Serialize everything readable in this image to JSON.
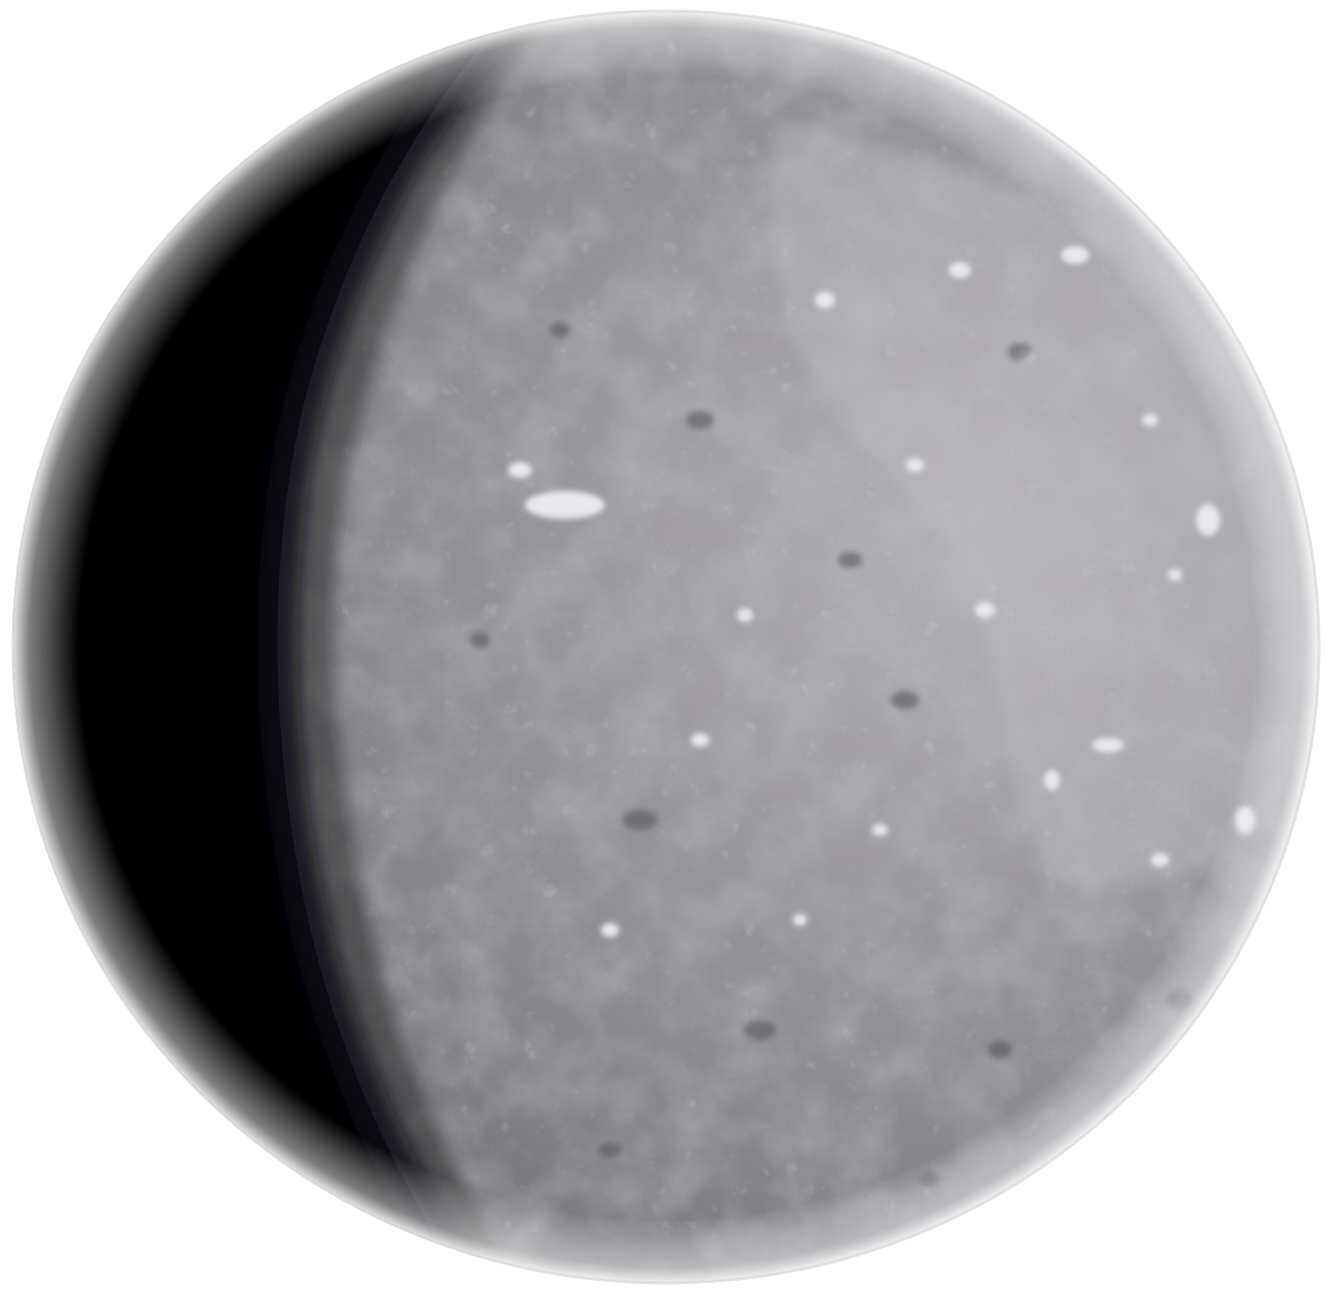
{
  "scene": {
    "subject": "planet-illustration",
    "colors": {
      "background": "#ffffff",
      "night_side": "#000000",
      "terminator": "#3a3a3c",
      "surface_dark": "#6d6c70",
      "surface_mid": "#86858a",
      "surface_light": "#a3a1a6",
      "highlight": "#c9c8cc",
      "rim": "#e4e4e6"
    }
  }
}
